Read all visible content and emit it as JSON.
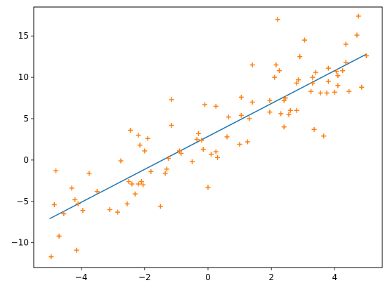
{
  "chart_data": {
    "type": "scatter",
    "title": "",
    "xlabel": "",
    "ylabel": "",
    "xlim": [
      -5.5,
      5.5
    ],
    "ylim": [
      -13.0,
      18.5
    ],
    "x_ticks": [
      -4,
      -2,
      0,
      2,
      4
    ],
    "y_ticks": [
      -10,
      -5,
      0,
      5,
      10,
      15
    ],
    "x_tick_labels": [
      "−4",
      "−2",
      "0",
      "2",
      "4"
    ],
    "y_tick_labels": [
      "−10",
      "−5",
      "0",
      "5",
      "10",
      "15"
    ],
    "grid": false,
    "legend": "none",
    "series": [
      {
        "kind": "scatter",
        "marker": "plus",
        "color": "#ff7f0e",
        "points": [
          [
            -4.95,
            -11.7
          ],
          [
            -4.85,
            -5.4
          ],
          [
            -4.8,
            -1.3
          ],
          [
            -4.7,
            -9.2
          ],
          [
            -4.55,
            -6.5
          ],
          [
            -4.3,
            -3.4
          ],
          [
            -4.2,
            -4.8
          ],
          [
            -4.15,
            -10.9
          ],
          [
            -4.1,
            -5.3
          ],
          [
            -3.95,
            -6.1
          ],
          [
            -3.75,
            -1.6
          ],
          [
            -3.5,
            -3.8
          ],
          [
            -3.1,
            -6.0
          ],
          [
            -2.85,
            -6.3
          ],
          [
            -2.75,
            -0.1
          ],
          [
            -2.55,
            -5.3
          ],
          [
            -2.5,
            -2.6
          ],
          [
            -2.45,
            3.6
          ],
          [
            -2.4,
            -2.9
          ],
          [
            -2.3,
            -4.1
          ],
          [
            -2.2,
            -2.9
          ],
          [
            -2.2,
            3.0
          ],
          [
            -2.15,
            1.8
          ],
          [
            -2.1,
            -2.6
          ],
          [
            -2.05,
            -3.0
          ],
          [
            -2.0,
            1.1
          ],
          [
            -1.9,
            2.6
          ],
          [
            -1.8,
            -1.4
          ],
          [
            -1.5,
            -5.6
          ],
          [
            -1.35,
            -1.6
          ],
          [
            -1.3,
            -1.1
          ],
          [
            -1.25,
            0.2
          ],
          [
            -1.15,
            7.3
          ],
          [
            -1.15,
            4.2
          ],
          [
            -0.9,
            1.1
          ],
          [
            -0.85,
            0.8
          ],
          [
            -0.5,
            -0.2
          ],
          [
            -0.35,
            2.5
          ],
          [
            -0.3,
            3.2
          ],
          [
            -0.2,
            2.4
          ],
          [
            -0.15,
            1.3
          ],
          [
            -0.1,
            6.7
          ],
          [
            0.0,
            -3.3
          ],
          [
            0.1,
            0.7
          ],
          [
            0.25,
            1.0
          ],
          [
            0.25,
            6.5
          ],
          [
            0.3,
            0.3
          ],
          [
            0.6,
            2.8
          ],
          [
            0.65,
            5.2
          ],
          [
            1.0,
            1.9
          ],
          [
            1.05,
            5.4
          ],
          [
            1.05,
            7.6
          ],
          [
            1.25,
            2.2
          ],
          [
            1.3,
            5.0
          ],
          [
            1.4,
            7.0
          ],
          [
            1.4,
            11.5
          ],
          [
            1.95,
            5.8
          ],
          [
            1.95,
            7.2
          ],
          [
            2.1,
            10.0
          ],
          [
            2.15,
            11.5
          ],
          [
            2.2,
            17.0
          ],
          [
            2.25,
            10.8
          ],
          [
            2.3,
            5.6
          ],
          [
            2.4,
            7.2
          ],
          [
            2.4,
            4.0
          ],
          [
            2.45,
            7.5
          ],
          [
            2.55,
            5.5
          ],
          [
            2.6,
            6.0
          ],
          [
            2.8,
            9.3
          ],
          [
            2.8,
            6.0
          ],
          [
            2.85,
            9.7
          ],
          [
            2.9,
            12.5
          ],
          [
            3.05,
            14.5
          ],
          [
            3.25,
            8.3
          ],
          [
            3.3,
            9.3
          ],
          [
            3.3,
            10.0
          ],
          [
            3.35,
            3.7
          ],
          [
            3.4,
            10.6
          ],
          [
            3.55,
            8.1
          ],
          [
            3.65,
            2.9
          ],
          [
            3.75,
            8.1
          ],
          [
            3.8,
            11.1
          ],
          [
            3.8,
            9.5
          ],
          [
            4.0,
            8.2
          ],
          [
            4.05,
            10.7
          ],
          [
            4.1,
            10.2
          ],
          [
            4.1,
            9.0
          ],
          [
            4.25,
            10.8
          ],
          [
            4.35,
            11.8
          ],
          [
            4.35,
            14.0
          ],
          [
            4.45,
            8.3
          ],
          [
            4.7,
            15.1
          ],
          [
            4.75,
            17.4
          ],
          [
            4.85,
            8.8
          ],
          [
            5.0,
            12.6
          ]
        ]
      },
      {
        "kind": "line",
        "color": "#1f77b4",
        "x": [
          -5.0,
          5.0
        ],
        "y": [
          -7.1,
          12.8
        ]
      }
    ]
  }
}
